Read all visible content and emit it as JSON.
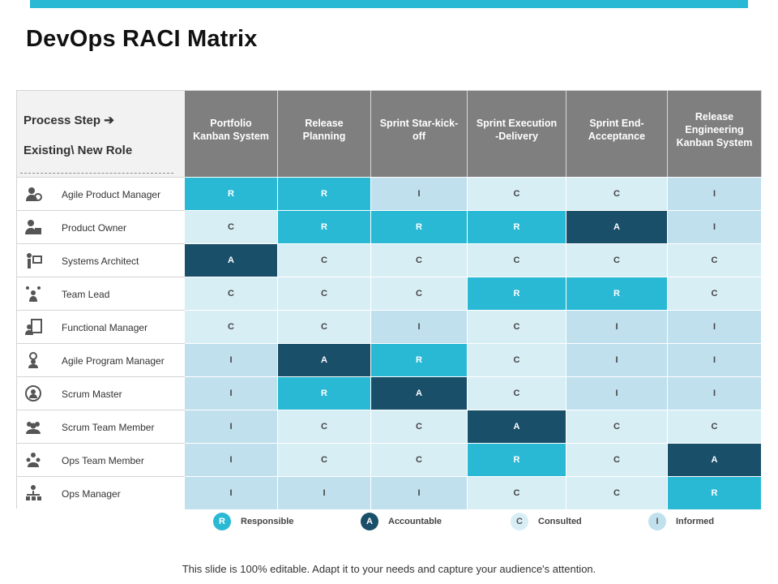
{
  "slide": {
    "title": "DevOps RACI Matrix",
    "footer": "This slide is 100% editable. Adapt it to your needs and capture your audience's attention."
  },
  "matrix": {
    "corner_line1": "Process Step ➔",
    "corner_line2": "Existing\\ New Role",
    "columns": [
      "Portfolio Kanban System",
      "Release Planning",
      "Sprint Star-kick-off",
      "Sprint Execution -Delivery",
      "Sprint End-Acceptance",
      "Release Engineering Kanban System"
    ],
    "rows": [
      {
        "role": "Agile Product Manager",
        "icon": "gear-person-icon",
        "values": [
          "R",
          "R",
          "I",
          "C",
          "C",
          "I"
        ]
      },
      {
        "role": "Product Owner",
        "icon": "owner-icon",
        "values": [
          "C",
          "R",
          "R",
          "R",
          "A",
          "I"
        ]
      },
      {
        "role": "Systems Architect",
        "icon": "architect-icon",
        "values": [
          "A",
          "C",
          "C",
          "C",
          "C",
          "C"
        ]
      },
      {
        "role": "Team Lead",
        "icon": "team-lead-icon",
        "values": [
          "C",
          "C",
          "C",
          "R",
          "R",
          "C"
        ]
      },
      {
        "role": "Functional Manager",
        "icon": "clipboard-person-icon",
        "values": [
          "C",
          "C",
          "I",
          "C",
          "I",
          "I"
        ]
      },
      {
        "role": "Agile Program Manager",
        "icon": "program-manager-icon",
        "values": [
          "I",
          "A",
          "R",
          "C",
          "I",
          "I"
        ]
      },
      {
        "role": "Scrum Master",
        "icon": "scrum-master-icon",
        "values": [
          "I",
          "R",
          "A",
          "C",
          "I",
          "I"
        ]
      },
      {
        "role": "Scrum Team Member",
        "icon": "team-group-icon",
        "values": [
          "I",
          "C",
          "C",
          "A",
          "C",
          "C"
        ]
      },
      {
        "role": "Ops Team Member",
        "icon": "ops-team-icon",
        "values": [
          "I",
          "C",
          "C",
          "R",
          "C",
          "A"
        ]
      },
      {
        "role": "Ops Manager",
        "icon": "org-chart-icon",
        "values": [
          "I",
          "I",
          "I",
          "C",
          "C",
          "R"
        ]
      }
    ]
  },
  "legend": [
    {
      "code": "R",
      "label": "Responsible",
      "color": "#29b9d4"
    },
    {
      "code": "A",
      "label": "Accountable",
      "color": "#1a4f69"
    },
    {
      "code": "C",
      "label": "Consulted",
      "color": "#d8eef5"
    },
    {
      "code": "I",
      "label": "Informed",
      "color": "#c0e0ee"
    }
  ],
  "colors": {
    "accent": "#29b9d4",
    "dark": "#1a4f69",
    "header_gray": "#7f7f7f"
  }
}
